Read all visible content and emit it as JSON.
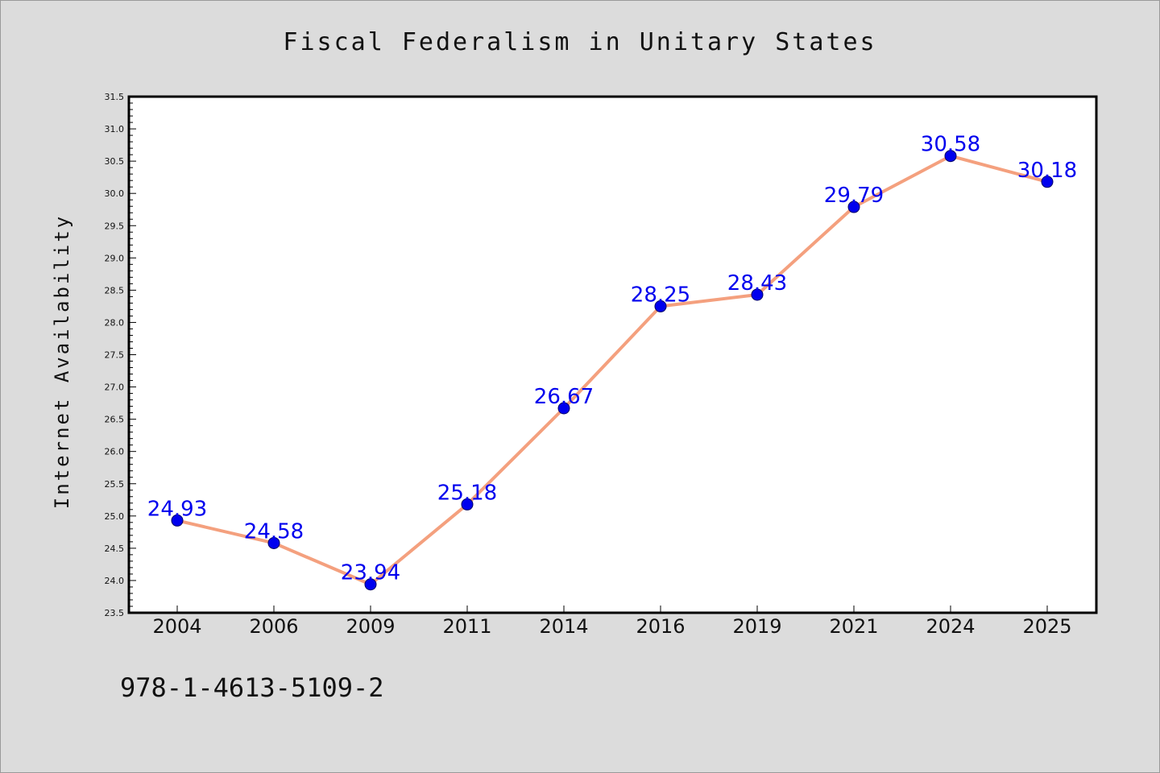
{
  "colors": {
    "background": "#dcdcdc",
    "plot_background": "#ffffff",
    "line": "#f4a07e",
    "marker": "#0000ee",
    "data_label": "#0000ee",
    "axis": "#000000"
  },
  "footer": {
    "code": "978-1-4613-5109-2"
  },
  "chart_data": {
    "type": "line",
    "title": "Fiscal Federalism in Unitary States",
    "xlabel": "",
    "ylabel": "Internet Availability",
    "categories": [
      "2004",
      "2006",
      "2009",
      "2011",
      "2014",
      "2016",
      "2019",
      "2021",
      "2024",
      "2025"
    ],
    "series": [
      {
        "values": [
          24.93,
          24.58,
          23.94,
          25.18,
          26.67,
          28.25,
          28.43,
          29.79,
          30.58,
          30.18
        ],
        "labels": [
          "24.93",
          "24.58",
          "23.94",
          "25.18",
          "26.67",
          "28.25",
          "28.43",
          "29.79",
          "30.58",
          "30.18"
        ]
      }
    ],
    "ylim": [
      23.5,
      31.5
    ],
    "yticks": [
      "23.5",
      "24.0",
      "24.5",
      "25.0",
      "25.5",
      "26.0",
      "26.5",
      "27.0",
      "27.5",
      "28.0",
      "28.5",
      "29.0",
      "29.5",
      "30.0",
      "30.5",
      "31.0",
      "31.5"
    ],
    "grid": false,
    "legend": "none",
    "marker": "circle"
  }
}
